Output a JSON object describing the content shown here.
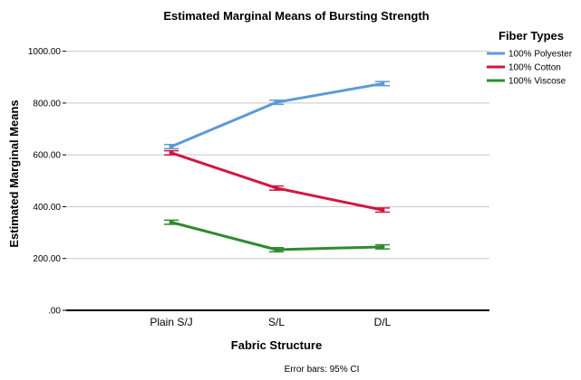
{
  "chart_data": {
    "type": "line",
    "title": "Estimated Marginal Means of Bursting Strength",
    "xlabel": "Fabric Structure",
    "ylabel": "Estimated Marginal Means",
    "categories": [
      "Plain S/J",
      "S/L",
      "D/L"
    ],
    "ylim": [
      0,
      1100
    ],
    "yticks": [
      0,
      200,
      400,
      600,
      800,
      1000
    ],
    "ytick_labels": [
      ".00",
      "200.00",
      "400.00",
      "600.00",
      "800.00",
      "1000.00"
    ],
    "grid": true,
    "legend_title": "Fiber Types",
    "legend_position": "right",
    "footnote": "Error bars: 95% CI",
    "series": [
      {
        "name": "100% Polyester",
        "color": "#5b9bd5",
        "values": [
          632,
          803,
          875
        ],
        "ci": [
          [
            624,
            640
          ],
          [
            795,
            811
          ],
          [
            867,
            883
          ]
        ]
      },
      {
        "name": "100% Cotton",
        "color": "#d3163f",
        "values": [
          608,
          472,
          387
        ],
        "ci": [
          [
            600,
            616
          ],
          [
            464,
            480
          ],
          [
            379,
            395
          ]
        ]
      },
      {
        "name": "100% Viscose",
        "color": "#2e8b2e",
        "values": [
          340,
          234,
          245
        ],
        "ci": [
          [
            332,
            348
          ],
          [
            226,
            242
          ],
          [
            237,
            253
          ]
        ]
      }
    ]
  }
}
